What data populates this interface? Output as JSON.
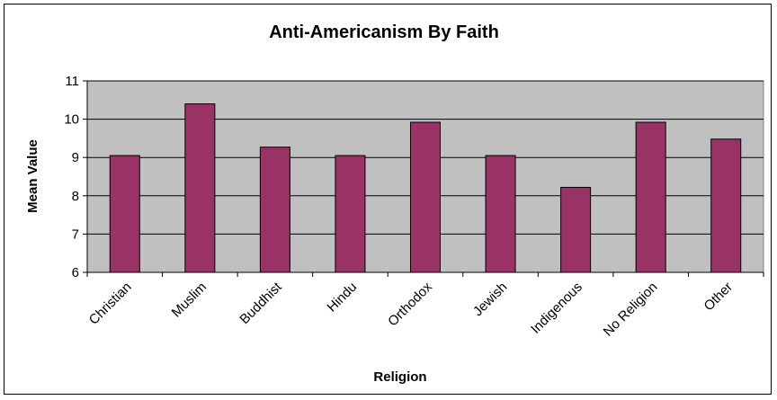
{
  "chart_data": {
    "type": "bar",
    "title": "Anti-Americanism By Faith",
    "xlabel": "Religion",
    "ylabel": "Mean Value",
    "categories": [
      "Christian",
      "Muslim",
      "Buddhist",
      "Hindu",
      "Orthodox",
      "Jewish",
      "Indigenous",
      "No Religion",
      "Other"
    ],
    "series": [
      {
        "values": [
          9.05,
          10.4,
          9.27,
          9.05,
          9.92,
          9.05,
          8.22,
          9.92,
          9.48
        ]
      }
    ],
    "ylim": [
      6,
      11
    ],
    "yticks": [
      "6",
      "7",
      "8",
      "9",
      "10",
      "11"
    ],
    "grid": true,
    "legend": "none",
    "colors": {
      "bar": "#993366",
      "plot_background": "#c0c0c0",
      "gridline": "#000000"
    }
  }
}
